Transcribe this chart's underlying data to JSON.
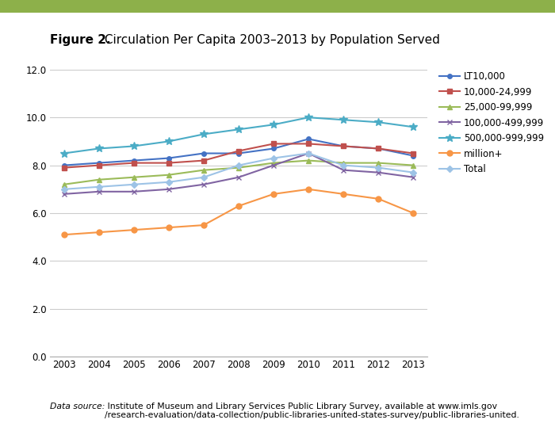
{
  "title_bold": "Figure 2.",
  "title_rest": " Circulation Per Capita 2003–2013 by Population Served",
  "years": [
    2003,
    2004,
    2005,
    2006,
    2007,
    2008,
    2009,
    2010,
    2011,
    2012,
    2013
  ],
  "series": [
    {
      "label": "LT10,000",
      "color": "#4472C4",
      "marker": "o",
      "markersize": 4,
      "values": [
        8.0,
        8.1,
        8.2,
        8.3,
        8.5,
        8.5,
        8.7,
        9.1,
        8.8,
        8.7,
        8.4
      ]
    },
    {
      "label": "10,000-24,999",
      "color": "#C0504D",
      "marker": "s",
      "markersize": 5,
      "values": [
        7.9,
        8.0,
        8.1,
        8.1,
        8.2,
        8.6,
        8.9,
        8.9,
        8.8,
        8.7,
        8.5
      ]
    },
    {
      "label": "25,000-99,999",
      "color": "#9BBB59",
      "marker": "^",
      "markersize": 5,
      "values": [
        7.2,
        7.4,
        7.5,
        7.6,
        7.8,
        7.9,
        8.1,
        8.2,
        8.1,
        8.1,
        8.0
      ]
    },
    {
      "label": "100,000-499,999",
      "color": "#8064A2",
      "marker": "x",
      "markersize": 5,
      "values": [
        6.8,
        6.9,
        6.9,
        7.0,
        7.2,
        7.5,
        8.0,
        8.5,
        7.8,
        7.7,
        7.5
      ]
    },
    {
      "label": "500,000-999,999",
      "color": "#4BACC6",
      "marker": "*",
      "markersize": 7,
      "values": [
        8.5,
        8.7,
        8.8,
        9.0,
        9.3,
        9.5,
        9.7,
        10.0,
        9.9,
        9.8,
        9.6
      ]
    },
    {
      "label": "million+",
      "color": "#F79646",
      "marker": "o",
      "markersize": 5,
      "values": [
        5.1,
        5.2,
        5.3,
        5.4,
        5.5,
        6.3,
        6.8,
        7.0,
        6.8,
        6.6,
        6.0
      ]
    },
    {
      "label": "Total",
      "color": "#9DC3E6",
      "marker": "D",
      "markersize": 4,
      "values": [
        7.0,
        7.1,
        7.2,
        7.3,
        7.5,
        8.0,
        8.3,
        8.5,
        8.0,
        7.9,
        7.7
      ]
    }
  ],
  "ylim": [
    0.0,
    12.0
  ],
  "yticks": [
    0.0,
    2.0,
    4.0,
    6.0,
    8.0,
    10.0,
    12.0
  ],
  "background_color": "#ffffff",
  "top_bar_color": "#8DB04A",
  "grid_color": "#CCCCCC",
  "footer_italic": "Data source:",
  "footer_rest": " Institute of Museum and Library Services Public Library Survey, available at www.imls.gov\n/research-evaluation/data-collection/public-libraries-united-states-survey/public-libraries-united."
}
